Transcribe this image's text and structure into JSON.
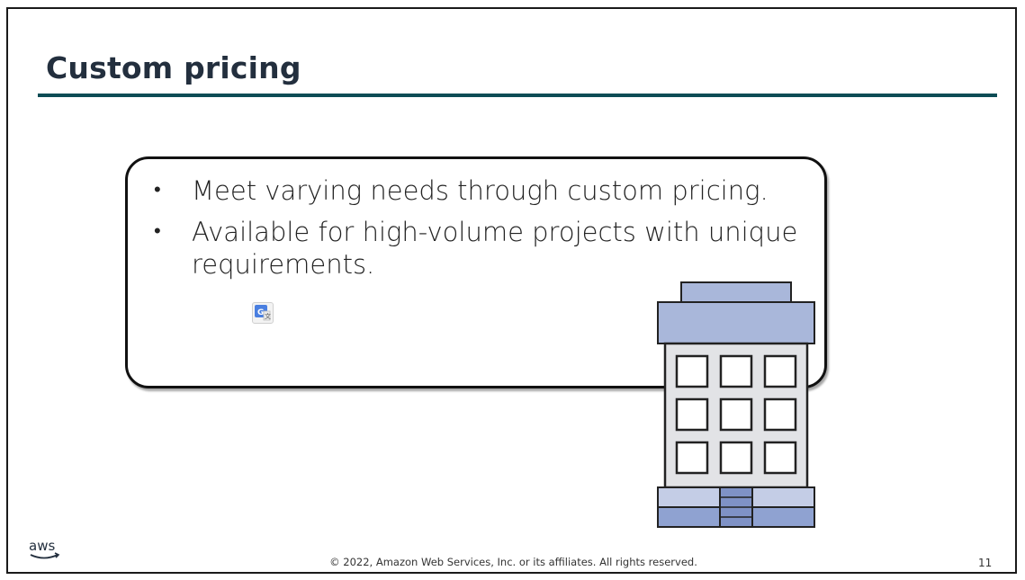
{
  "slide": {
    "title": "Custom pricing",
    "bullets": [
      "Meet varying needs through custom pricing.",
      "Available for high-volume projects with unique requirements."
    ],
    "footer": "© 2022, Amazon Web Services, Inc. or its affiliates. All rights reserved.",
    "page_number": "11",
    "logo_text": "aws"
  },
  "colors": {
    "title": "#232f3e",
    "rule": "#0c4c55",
    "building_accent": "#a9b7da"
  },
  "icons": [
    "translate-icon",
    "office-building-icon",
    "aws-logo"
  ]
}
